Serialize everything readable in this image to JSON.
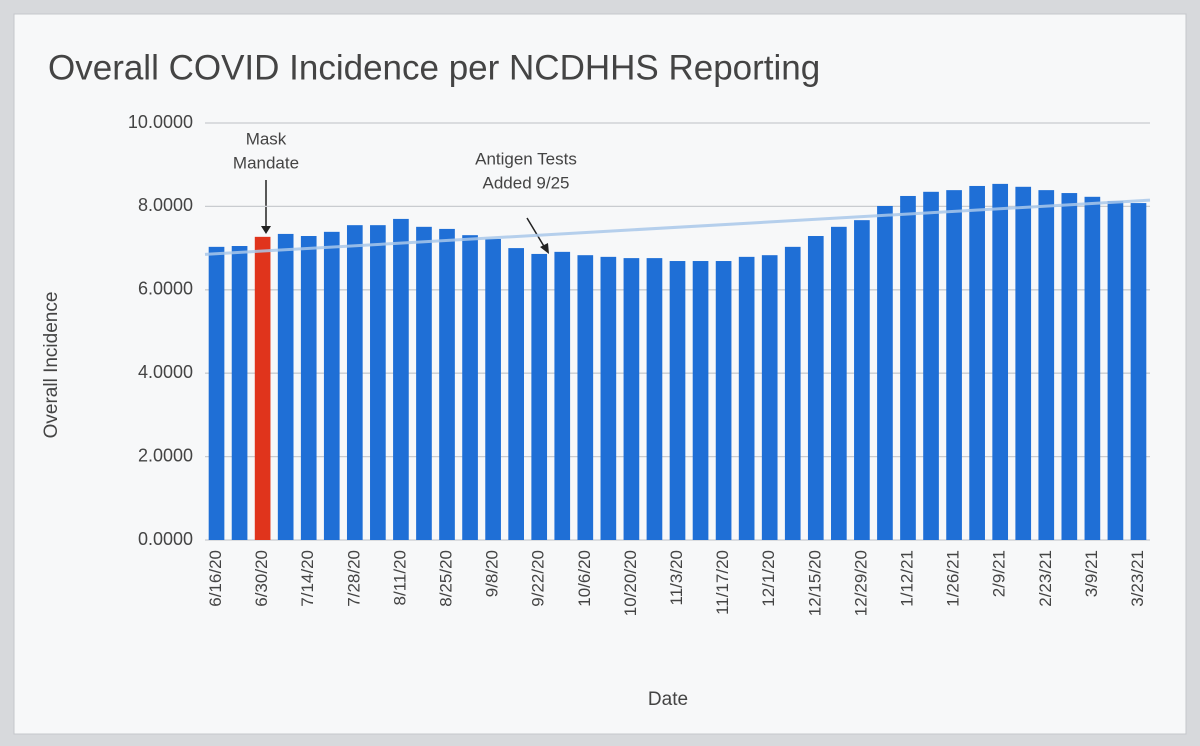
{
  "chart_data": {
    "type": "bar",
    "title": "Overall COVID Incidence per NCDHHS Reporting",
    "y_label": "Overall Incidence",
    "x_label": "Date",
    "categories": [
      "6/16/20",
      null,
      "6/30/20",
      null,
      "7/14/20",
      null,
      "7/28/20",
      null,
      "8/11/20",
      null,
      "8/25/20",
      null,
      "9/8/20",
      null,
      "9/22/20",
      null,
      "10/6/20",
      null,
      "10/20/20",
      null,
      "11/3/20",
      null,
      "11/17/20",
      null,
      "12/1/20",
      null,
      "12/15/20",
      null,
      "12/29/20",
      null,
      "1/12/21",
      null,
      "1/26/21",
      null,
      "2/9/21",
      null,
      "2/23/21",
      null,
      "3/9/21",
      null,
      "3/23/21"
    ],
    "values": [
      7.03,
      7.05,
      7.27,
      7.34,
      7.29,
      7.39,
      7.55,
      7.55,
      7.7,
      7.51,
      7.46,
      7.31,
      7.22,
      7.0,
      6.86,
      6.91,
      6.83,
      6.79,
      6.76,
      6.76,
      6.69,
      6.69,
      6.69,
      6.79,
      6.83,
      7.03,
      7.29,
      7.51,
      7.67,
      8.01,
      8.25,
      8.35,
      8.39,
      8.49,
      8.54,
      8.47,
      8.39,
      8.32,
      8.23,
      8.13,
      8.08
    ],
    "color": "#1f6fd6",
    "highlight": {
      "index": 2,
      "color": "#e0341c"
    },
    "trendline": [
      6.85,
      8.15
    ],
    "trendline_color": "#a9c8ea",
    "ylim": [
      0,
      10
    ],
    "yticks": [
      {
        "value": 0,
        "label": "0.0000"
      },
      {
        "value": 2,
        "label": "2.0000"
      },
      {
        "value": 4,
        "label": "4.0000"
      },
      {
        "value": 6,
        "label": "6.0000"
      },
      {
        "value": 8,
        "label": "8.0000"
      },
      {
        "value": 10,
        "label": "10.0000"
      }
    ],
    "grid": true,
    "annotations": [
      {
        "lines": [
          "Mask",
          "Mandate"
        ],
        "color": "#d9362a"
      },
      {
        "lines": [
          "Antigen Tests",
          "Added 9/25"
        ],
        "color": "#d9362a"
      }
    ]
  }
}
